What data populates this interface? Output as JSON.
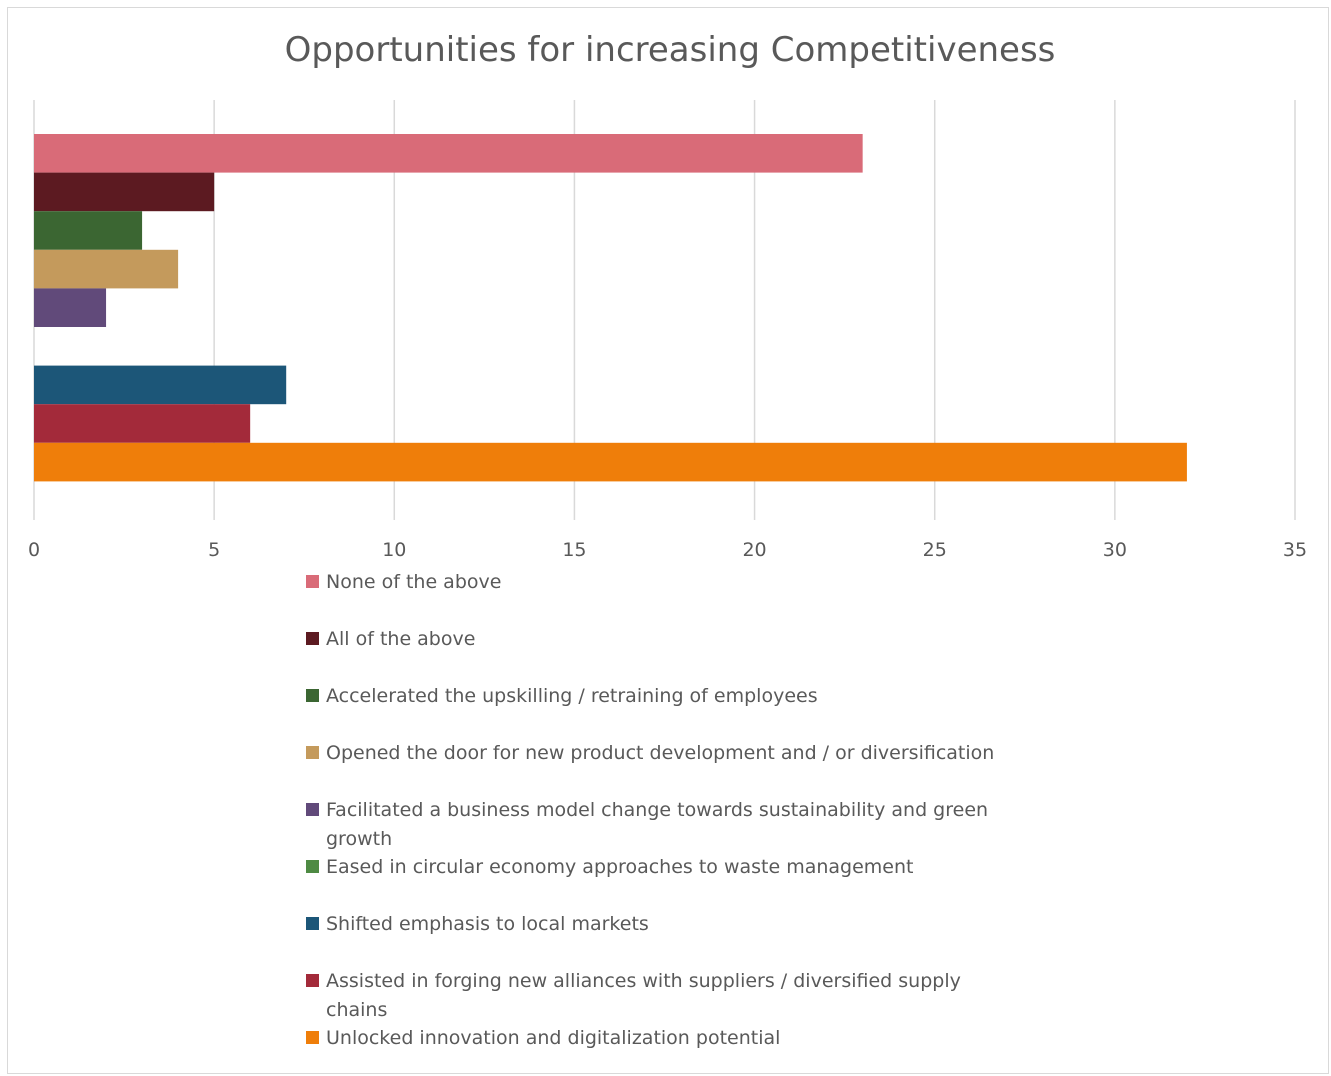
{
  "chart_data": {
    "type": "bar",
    "orientation": "horizontal",
    "title": "Opportunities for increasing Competitiveness",
    "xlim": [
      0,
      35
    ],
    "x_ticks": [
      "0",
      "5",
      "10",
      "15",
      "20",
      "25",
      "30",
      "35"
    ],
    "grid": "vertical",
    "legend_position": "bottom",
    "series": [
      {
        "name": "None of the above",
        "value": 23,
        "color": "#d96b78"
      },
      {
        "name": "All of the above",
        "value": 5,
        "color": "#5c1a21"
      },
      {
        "name": "Accelerated the upskilling / retraining of employees",
        "value": 3,
        "color": "#3b6632"
      },
      {
        "name": "Opened the door for new product development and / or diversification",
        "value": 4,
        "color": "#c49a5c"
      },
      {
        "name": "Facilitated a business model change towards sustainability and green growth",
        "value": 2,
        "color": "#614a7a"
      },
      {
        "name": "Eased in circular economy approaches to waste management",
        "value": 0,
        "color": "#4e8a43"
      },
      {
        "name": "Shifted emphasis to local markets",
        "value": 7,
        "color": "#1c5678"
      },
      {
        "name": "Assisted in forging new alliances with suppliers / diversified supply chains",
        "value": 6,
        "color": "#a32a3a"
      },
      {
        "name": "Unlocked innovation and digitalization potential",
        "value": 32,
        "color": "#ef7e0a"
      }
    ]
  }
}
